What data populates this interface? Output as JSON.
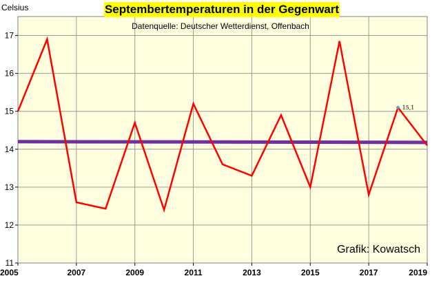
{
  "chart_data": {
    "type": "line",
    "title": "Septembertemperaturen in der Gegenwart",
    "subtitle": "Datenquelle: Deutscher Wetterdienst, Offenbach",
    "ylabel": "Celsius",
    "credit": "Grafik: Kowatsch",
    "xlim": [
      2005,
      2019
    ],
    "ylim": [
      11,
      17.5
    ],
    "x_ticks": [
      2005,
      2007,
      2009,
      2011,
      2013,
      2015,
      2017,
      2019
    ],
    "y_ticks": [
      11,
      12,
      13,
      14,
      15,
      16,
      17
    ],
    "grid": true,
    "plot_background": "#ffffe0",
    "series": [
      {
        "color": "#ff0000",
        "x": [
          2005,
          2006,
          2007,
          2008,
          2009,
          2010,
          2011,
          2012,
          2013,
          2014,
          2015,
          2016,
          2017,
          2018,
          2019
        ],
        "values": [
          15.0,
          16.9,
          12.6,
          12.43,
          14.7,
          12.4,
          15.2,
          13.6,
          13.3,
          14.9,
          13.0,
          16.85,
          12.8,
          15.1,
          14.1
        ]
      }
    ],
    "trendline": {
      "color": "#7030a0",
      "x": [
        2005,
        2019
      ],
      "values": [
        14.2,
        14.18
      ]
    },
    "annotation": {
      "x": 2018,
      "y": 15.1,
      "text": "15,1",
      "marker_color": "#5b9bd5"
    }
  }
}
